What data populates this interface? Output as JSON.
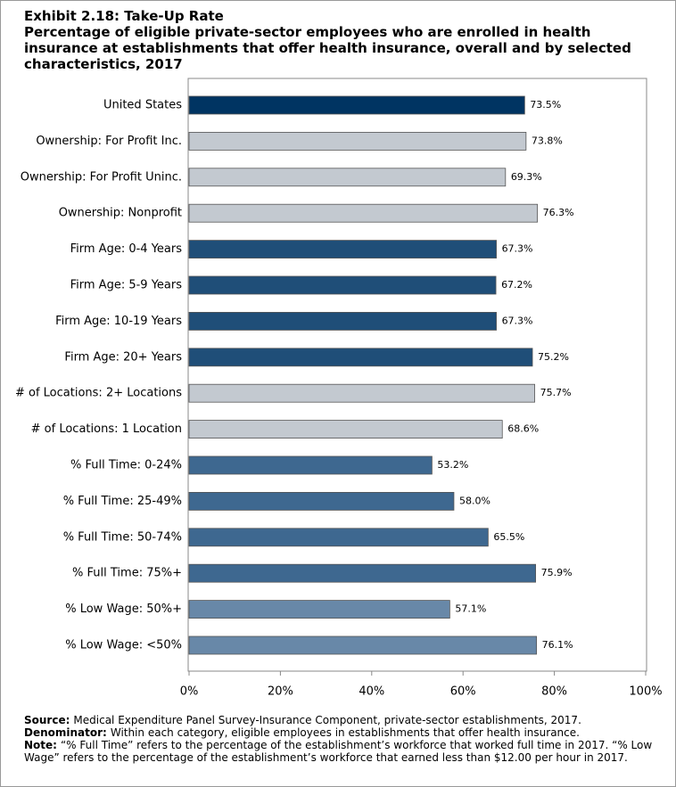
{
  "chart_data": {
    "type": "barh",
    "title": "Exhibit 2.18: Take-Up Rate",
    "subtitle": "Percentage of eligible private-sector employees who are enrolled in health insurance at establishments that offer health insurance, overall and by selected characteristics, 2017",
    "categories": [
      "United States",
      "Ownership: For Profit Inc.",
      "Ownership: For Profit Uninc.",
      "Ownership: Nonprofit",
      "Firm Age: 0-4 Years",
      "Firm Age: 5-9 Years",
      "Firm Age: 10-19 Years",
      "Firm Age: 20+ Years",
      "# of Locations: 2+ Locations",
      "# of Locations: 1 Location",
      "% Full Time: 0-24%",
      "% Full Time: 25-49%",
      "% Full Time: 50-74%",
      "% Full Time: 75%+",
      "% Low Wage: 50%+",
      "% Low Wage: <50%"
    ],
    "values": [
      73.5,
      73.8,
      69.3,
      76.3,
      67.3,
      67.2,
      67.3,
      75.2,
      75.7,
      68.6,
      53.2,
      58.0,
      65.5,
      75.9,
      57.1,
      76.1
    ],
    "value_labels": [
      "73.5%",
      "73.8%",
      "69.3%",
      "76.3%",
      "67.3%",
      "67.2%",
      "67.3%",
      "75.2%",
      "75.7%",
      "68.6%",
      "53.2%",
      "58.0%",
      "65.5%",
      "75.9%",
      "57.1%",
      "76.1%"
    ],
    "colors": [
      "#003462",
      "#c3c9d0",
      "#c3c9d0",
      "#c3c9d0",
      "#1f4e78",
      "#1f4e78",
      "#1f4e78",
      "#1f4e78",
      "#c3c9d0",
      "#c3c9d0",
      "#3e6890",
      "#3e6890",
      "#3e6890",
      "#3e6890",
      "#6888a8",
      "#6888a8"
    ],
    "xlim": [
      0,
      100
    ],
    "xticks": [
      {
        "value": 0,
        "label": "0%"
      },
      {
        "value": 20,
        "label": "20%"
      },
      {
        "value": 40,
        "label": "40%"
      },
      {
        "value": 60,
        "label": "60%"
      },
      {
        "value": 80,
        "label": "80%"
      },
      {
        "value": 100,
        "label": "100%"
      }
    ],
    "notes": [
      {
        "label": "Source:",
        "text": "Medical Expenditure Panel Survey-Insurance Component, private-sector establishments, 2017."
      },
      {
        "label": "Denominator:",
        "text": "Within each category, eligible employees in establishments that offer health insurance."
      },
      {
        "label": "Note:",
        "text": "“% Full Time” refers to the percentage of the establishment’s workforce that worked full time in 2017. “% Low Wage” refers to the percentage of the establishment’s workforce that earned less than $12.00 per hour in 2017."
      }
    ]
  }
}
